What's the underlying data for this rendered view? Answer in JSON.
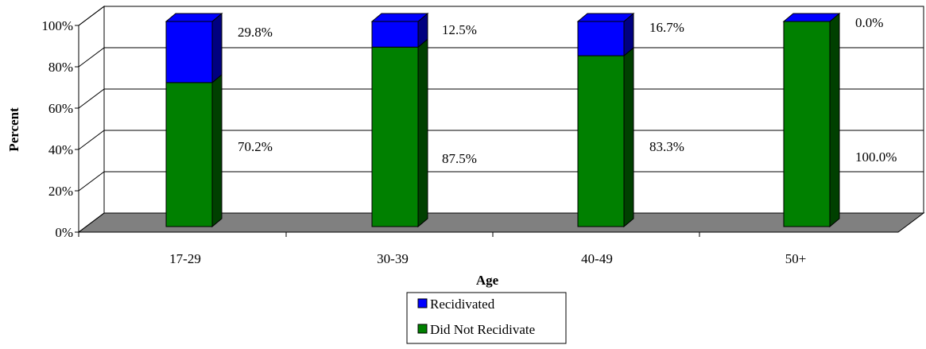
{
  "chart_data": {
    "type": "bar",
    "stacked": true,
    "style": "3d",
    "categories": [
      "17-29",
      "30-39",
      "40-49",
      "50+"
    ],
    "series": [
      {
        "name": "Did Not Recidivate",
        "color": "#008000",
        "values": [
          70.2,
          87.5,
          83.3,
          100.0
        ],
        "labels": [
          "70.2%",
          "87.5%",
          "83.3%",
          "100.0%"
        ]
      },
      {
        "name": "Recidivated",
        "color": "#0000ff",
        "values": [
          29.8,
          12.5,
          16.7,
          0.0
        ],
        "labels": [
          "29.8%",
          "12.5%",
          "16.7%",
          "0.0%"
        ]
      }
    ],
    "xlabel": "Age",
    "ylabel": "Percent",
    "ylim": [
      0,
      100
    ],
    "yticks": [
      "0%",
      "20%",
      "40%",
      "60%",
      "80%",
      "100%"
    ],
    "grid": true,
    "legend_position": "bottom-center",
    "legend_order": [
      "Recidivated",
      "Did Not Recidivate"
    ]
  }
}
